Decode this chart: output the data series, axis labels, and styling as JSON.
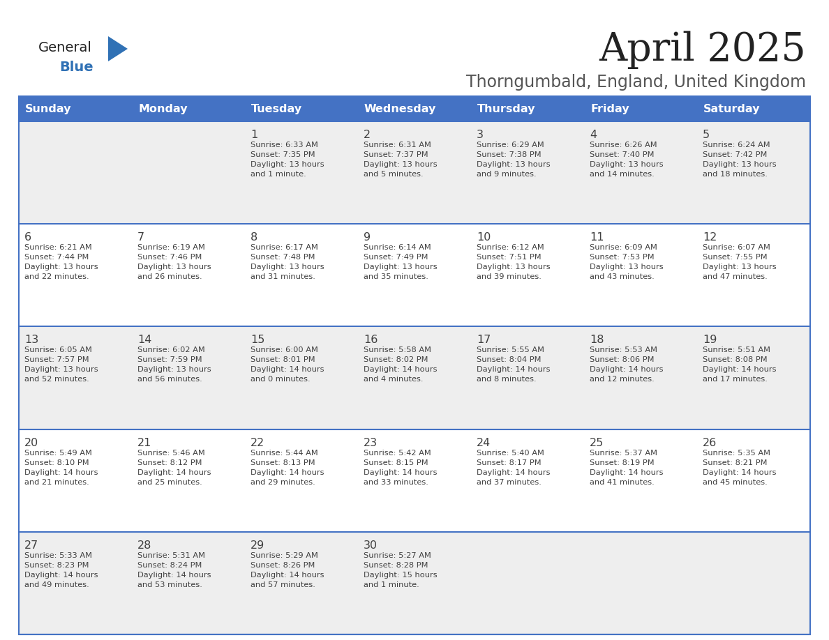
{
  "title": "April 2025",
  "subtitle": "Thorngumbald, England, United Kingdom",
  "days_of_week": [
    "Sunday",
    "Monday",
    "Tuesday",
    "Wednesday",
    "Thursday",
    "Friday",
    "Saturday"
  ],
  "header_bg": "#4472C4",
  "header_text": "#FFFFFF",
  "row_bg_light": "#FFFFFF",
  "row_bg_dark": "#EEEEEE",
  "border_color": "#4472C4",
  "text_color": "#404040",
  "title_color": "#222222",
  "subtitle_color": "#555555",
  "logo_black": "#222222",
  "logo_blue": "#3071B5",
  "calendar_data": [
    [
      {
        "day": null,
        "text": ""
      },
      {
        "day": null,
        "text": ""
      },
      {
        "day": 1,
        "text": "Sunrise: 6:33 AM\nSunset: 7:35 PM\nDaylight: 13 hours\nand 1 minute."
      },
      {
        "day": 2,
        "text": "Sunrise: 6:31 AM\nSunset: 7:37 PM\nDaylight: 13 hours\nand 5 minutes."
      },
      {
        "day": 3,
        "text": "Sunrise: 6:29 AM\nSunset: 7:38 PM\nDaylight: 13 hours\nand 9 minutes."
      },
      {
        "day": 4,
        "text": "Sunrise: 6:26 AM\nSunset: 7:40 PM\nDaylight: 13 hours\nand 14 minutes."
      },
      {
        "day": 5,
        "text": "Sunrise: 6:24 AM\nSunset: 7:42 PM\nDaylight: 13 hours\nand 18 minutes."
      }
    ],
    [
      {
        "day": 6,
        "text": "Sunrise: 6:21 AM\nSunset: 7:44 PM\nDaylight: 13 hours\nand 22 minutes."
      },
      {
        "day": 7,
        "text": "Sunrise: 6:19 AM\nSunset: 7:46 PM\nDaylight: 13 hours\nand 26 minutes."
      },
      {
        "day": 8,
        "text": "Sunrise: 6:17 AM\nSunset: 7:48 PM\nDaylight: 13 hours\nand 31 minutes."
      },
      {
        "day": 9,
        "text": "Sunrise: 6:14 AM\nSunset: 7:49 PM\nDaylight: 13 hours\nand 35 minutes."
      },
      {
        "day": 10,
        "text": "Sunrise: 6:12 AM\nSunset: 7:51 PM\nDaylight: 13 hours\nand 39 minutes."
      },
      {
        "day": 11,
        "text": "Sunrise: 6:09 AM\nSunset: 7:53 PM\nDaylight: 13 hours\nand 43 minutes."
      },
      {
        "day": 12,
        "text": "Sunrise: 6:07 AM\nSunset: 7:55 PM\nDaylight: 13 hours\nand 47 minutes."
      }
    ],
    [
      {
        "day": 13,
        "text": "Sunrise: 6:05 AM\nSunset: 7:57 PM\nDaylight: 13 hours\nand 52 minutes."
      },
      {
        "day": 14,
        "text": "Sunrise: 6:02 AM\nSunset: 7:59 PM\nDaylight: 13 hours\nand 56 minutes."
      },
      {
        "day": 15,
        "text": "Sunrise: 6:00 AM\nSunset: 8:01 PM\nDaylight: 14 hours\nand 0 minutes."
      },
      {
        "day": 16,
        "text": "Sunrise: 5:58 AM\nSunset: 8:02 PM\nDaylight: 14 hours\nand 4 minutes."
      },
      {
        "day": 17,
        "text": "Sunrise: 5:55 AM\nSunset: 8:04 PM\nDaylight: 14 hours\nand 8 minutes."
      },
      {
        "day": 18,
        "text": "Sunrise: 5:53 AM\nSunset: 8:06 PM\nDaylight: 14 hours\nand 12 minutes."
      },
      {
        "day": 19,
        "text": "Sunrise: 5:51 AM\nSunset: 8:08 PM\nDaylight: 14 hours\nand 17 minutes."
      }
    ],
    [
      {
        "day": 20,
        "text": "Sunrise: 5:49 AM\nSunset: 8:10 PM\nDaylight: 14 hours\nand 21 minutes."
      },
      {
        "day": 21,
        "text": "Sunrise: 5:46 AM\nSunset: 8:12 PM\nDaylight: 14 hours\nand 25 minutes."
      },
      {
        "day": 22,
        "text": "Sunrise: 5:44 AM\nSunset: 8:13 PM\nDaylight: 14 hours\nand 29 minutes."
      },
      {
        "day": 23,
        "text": "Sunrise: 5:42 AM\nSunset: 8:15 PM\nDaylight: 14 hours\nand 33 minutes."
      },
      {
        "day": 24,
        "text": "Sunrise: 5:40 AM\nSunset: 8:17 PM\nDaylight: 14 hours\nand 37 minutes."
      },
      {
        "day": 25,
        "text": "Sunrise: 5:37 AM\nSunset: 8:19 PM\nDaylight: 14 hours\nand 41 minutes."
      },
      {
        "day": 26,
        "text": "Sunrise: 5:35 AM\nSunset: 8:21 PM\nDaylight: 14 hours\nand 45 minutes."
      }
    ],
    [
      {
        "day": 27,
        "text": "Sunrise: 5:33 AM\nSunset: 8:23 PM\nDaylight: 14 hours\nand 49 minutes."
      },
      {
        "day": 28,
        "text": "Sunrise: 5:31 AM\nSunset: 8:24 PM\nDaylight: 14 hours\nand 53 minutes."
      },
      {
        "day": 29,
        "text": "Sunrise: 5:29 AM\nSunset: 8:26 PM\nDaylight: 14 hours\nand 57 minutes."
      },
      {
        "day": 30,
        "text": "Sunrise: 5:27 AM\nSunset: 8:28 PM\nDaylight: 15 hours\nand 1 minute."
      },
      {
        "day": null,
        "text": ""
      },
      {
        "day": null,
        "text": ""
      },
      {
        "day": null,
        "text": ""
      }
    ]
  ]
}
